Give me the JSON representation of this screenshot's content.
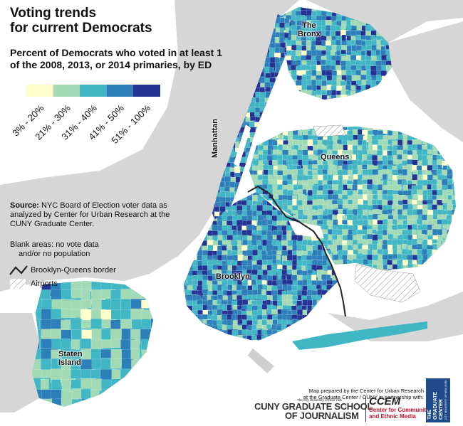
{
  "title": "Voting trends\nfor current Democrats",
  "subtitle": "Percent of Democrats who voted in at least 1 of the 2008, 2013, or 2014 primaries, by ED",
  "legend": {
    "bins": [
      {
        "label": "3% - 20%",
        "color": "#ffffcc"
      },
      {
        "label": "21% - 30%",
        "color": "#a1dab4"
      },
      {
        "label": "31% - 40%",
        "color": "#41b6c4"
      },
      {
        "label": "41% - 50%",
        "color": "#2c7fb8"
      },
      {
        "label": "51% - 100%",
        "color": "#253494"
      }
    ]
  },
  "source": {
    "heading": "Source:",
    "text": "NYC Board of Election voter data as analyzed by Center for Urban Research at the CUNY Graduate Center."
  },
  "blank_note": {
    "line1": "Blank areas: no vote data",
    "line2": "and/or no population"
  },
  "border_legend": "Brooklyn-Queens border",
  "airport_legend": "Airports",
  "places": {
    "bronx": "The\nBronx",
    "manhattan": "Manhattan",
    "queens": "Queens",
    "brooklyn": "Brooklyn",
    "staten_island": "Staten\nIsland"
  },
  "credit": {
    "line1": "Map prepared by the Center for Urban Research",
    "line2": "at the Graduate Center / CUNY in partnership with:"
  },
  "cuny_logo": {
    "tag": "The City University of New York",
    "line1": "CUNY GRADUATE SCHOOL",
    "line2": "OF JOURNALISM"
  },
  "ccem_logo": {
    "name": "CCEM",
    "line1": "Center for Community",
    "line2": "and Ethnic Media"
  },
  "gc_logo": {
    "line1": "THE",
    "line2": "GRADUATE",
    "line3": "CENTER",
    "tag": "CITY UNIVERSITY OF NEW YORK"
  }
}
